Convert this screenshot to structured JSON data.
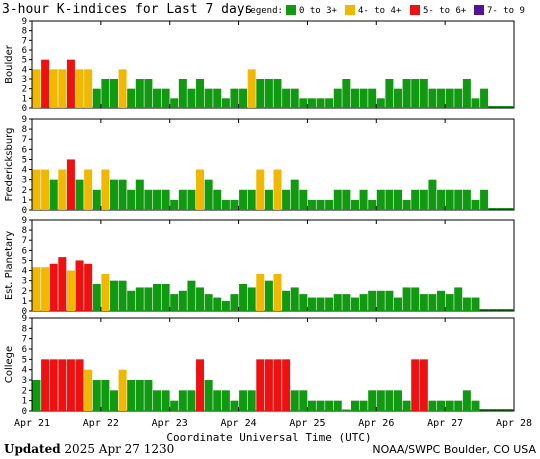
{
  "chart_data": {
    "type": "bar",
    "title": "3-hour K-indices for Last 7 days",
    "legend": {
      "title": "Legend:",
      "placement": "top-right",
      "entries": [
        {
          "label": "0 to 3+",
          "color": "#119911"
        },
        {
          "label": "4- to 4+",
          "color": "#f0b800"
        },
        {
          "label": "5- to 6+",
          "color": "#ee1111"
        },
        {
          "label": "7- to 9",
          "color": "#551199"
        }
      ]
    },
    "x_tick_labels": [
      "Apr 21",
      "Apr 22",
      "Apr 23",
      "Apr 24",
      "Apr 25",
      "Apr 26",
      "Apr 27",
      "Apr 28"
    ],
    "xlabel": "Coordinate Universal Time (UTC)",
    "ylim": [
      0,
      9
    ],
    "y_ticks": [
      0,
      1,
      2,
      3,
      4,
      5,
      6,
      7,
      8,
      9
    ],
    "grid": false,
    "panels": [
      {
        "name": "Boulder",
        "values": [
          4,
          5,
          4,
          4,
          5,
          4,
          4,
          2,
          3,
          3,
          4,
          2,
          3,
          3,
          2,
          2,
          1,
          3,
          2,
          3,
          2,
          2,
          1,
          2,
          2,
          4,
          3,
          3,
          3,
          2,
          2,
          1,
          1,
          1,
          1,
          2,
          3,
          2,
          2,
          2,
          1,
          3,
          2,
          3,
          3,
          3,
          2,
          2,
          2,
          2,
          3,
          1,
          2
        ]
      },
      {
        "name": "Fredericksburg",
        "values": [
          4,
          4,
          3,
          4,
          5,
          3,
          4,
          2,
          4,
          3,
          3,
          2,
          3,
          2,
          2,
          2,
          1,
          2,
          2,
          4,
          3,
          2,
          1,
          1,
          2,
          2,
          4,
          2,
          4,
          2,
          3,
          2,
          1,
          1,
          1,
          2,
          2,
          1,
          2,
          1,
          2,
          2,
          2,
          1,
          2,
          2,
          3,
          2,
          2,
          2,
          2,
          1,
          2
        ]
      },
      {
        "name": "Est. Planetary",
        "values": [
          4.33,
          4.33,
          4.67,
          5.33,
          4.0,
          5.0,
          4.67,
          2.67,
          3.67,
          3.0,
          3.0,
          2.0,
          2.33,
          2.33,
          2.67,
          2.67,
          1.67,
          2.0,
          3.0,
          2.33,
          1.67,
          1.33,
          1.0,
          1.67,
          2.67,
          2.33,
          3.67,
          3.0,
          3.67,
          2.0,
          2.33,
          1.67,
          1.33,
          1.33,
          1.33,
          1.67,
          1.67,
          1.33,
          1.67,
          2.0,
          2.0,
          2.0,
          1.33,
          2.33,
          2.33,
          1.67,
          1.67,
          2.0,
          1.67,
          2.33,
          1.33,
          1.33
        ]
      },
      {
        "name": "College",
        "values": [
          3,
          5,
          5,
          5,
          5,
          5,
          4,
          3,
          3,
          2,
          4,
          3,
          3,
          3,
          2,
          2,
          1,
          2,
          2,
          5,
          3,
          2,
          2,
          1,
          2,
          2,
          5,
          5,
          5,
          5,
          2,
          2,
          1,
          1,
          1,
          1,
          0,
          1,
          1,
          2,
          2,
          2,
          2,
          1,
          5,
          5,
          1,
          1,
          1,
          1,
          2,
          1
        ]
      }
    ]
  },
  "footer": {
    "updated_label": "Updated",
    "updated_value": "2025 Apr 27 1230",
    "credit": "NOAA/SWPC Boulder, CO USA"
  }
}
